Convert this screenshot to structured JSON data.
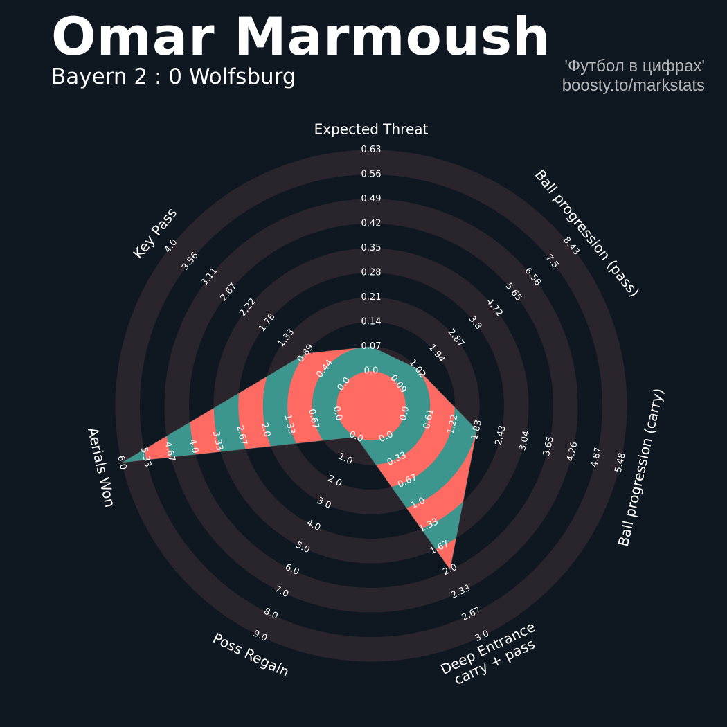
{
  "header": {
    "title": "Omar Marmoush",
    "subtitle": "Bayern 2 : 0 Wolfsburg",
    "credit_line1": "'Футбол в цифрах'",
    "credit_line2": "boosty.to/markstats"
  },
  "colors": {
    "background": "#0f1820",
    "ring": "#2a252c",
    "fill_a": "#ff6b63",
    "fill_b": "#3d968e",
    "text": "#ffffff"
  },
  "chart_data": {
    "type": "radar",
    "params": [
      {
        "label": [
          "Expected Threat"
        ],
        "value": 0.07,
        "min": 0.0,
        "max": 0.63,
        "ticks": [
          "0.0",
          "0.07",
          "0.14",
          "0.21",
          "0.28",
          "0.35",
          "0.42",
          "0.49",
          "0.56",
          "0.63"
        ]
      },
      {
        "label": [
          "Ball progression (pass)"
        ],
        "value": 1.02,
        "min": 0.09,
        "max": 8.43,
        "ticks": [
          "0.09",
          "1.02",
          "1.94",
          "2.87",
          "3.8",
          "4.72",
          "5.65",
          "6.58",
          "7.5",
          "8.43"
        ]
      },
      {
        "label": [
          "Ball progression (carry)"
        ],
        "value": 1.83,
        "min": 0.0,
        "max": 5.48,
        "ticks": [
          "0.0",
          "0.61",
          "1.22",
          "1.83",
          "2.43",
          "3.04",
          "3.65",
          "4.26",
          "4.87",
          "5.48"
        ]
      },
      {
        "label": [
          "Deep Entrance",
          "carry + pass"
        ],
        "value": 2.0,
        "min": 0.0,
        "max": 3.0,
        "ticks": [
          "0.0",
          "0.33",
          "0.67",
          "1.0",
          "1.33",
          "1.67",
          "2.0",
          "2.33",
          "2.67",
          "3.0"
        ]
      },
      {
        "label": [
          "Poss Regain"
        ],
        "value": 0.0,
        "min": 0.0,
        "max": 9.0,
        "ticks": [
          "0.0",
          "1.0",
          "2.0",
          "3.0",
          "4.0",
          "5.0",
          "6.0",
          "7.0",
          "8.0",
          "9.0"
        ]
      },
      {
        "label": [
          "Aerials Won"
        ],
        "value": 6.0,
        "min": 0.0,
        "max": 6.0,
        "ticks": [
          "0.0",
          "0.67",
          "1.33",
          "2.0",
          "2.67",
          "3.33",
          "4.0",
          "4.67",
          "5.33",
          "6.0"
        ]
      },
      {
        "label": [
          "Key Pass"
        ],
        "value": 0.89,
        "min": 0.0,
        "max": 4.0,
        "ticks": [
          "0.0",
          "0.44",
          "0.89",
          "1.33",
          "1.78",
          "2.22",
          "2.67",
          "3.11",
          "3.56",
          "4.0"
        ]
      }
    ]
  }
}
